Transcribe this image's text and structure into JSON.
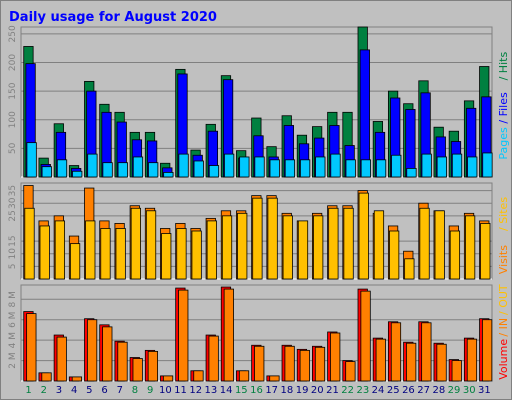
{
  "title": "Daily usage for August 2020",
  "colors": {
    "pages": "#00c8ff",
    "files": "#0000ff",
    "hits": "#008040",
    "visits": "#ff8000",
    "sites": "#ffc000",
    "kbin": "#ff8000",
    "kbout": "#ffc000",
    "volume": "#ff0000",
    "day_weekend": "#008040",
    "day_weekday": "#000080"
  },
  "chart_data": [
    {
      "type": "bar",
      "panel": "hits-files-pages",
      "categories": [
        "1",
        "2",
        "3",
        "4",
        "5",
        "6",
        "7",
        "8",
        "9",
        "10",
        "11",
        "12",
        "13",
        "14",
        "15",
        "16",
        "17",
        "18",
        "19",
        "20",
        "21",
        "22",
        "23",
        "24",
        "25",
        "26",
        "27",
        "28",
        "29",
        "30",
        "31"
      ],
      "weekend_days": [
        "1",
        "2",
        "8",
        "9",
        "15",
        "16",
        "22",
        "23",
        "29",
        "30"
      ],
      "ylim": [
        0,
        262
      ],
      "yticks": [
        "250",
        "200",
        "150",
        "100",
        "50"
      ],
      "ytick_values": [
        250,
        200,
        150,
        100,
        50
      ],
      "side_labels": [
        "Pages",
        "/",
        "Files",
        "/",
        "Hits"
      ],
      "series": [
        {
          "name": "Hits",
          "values": [
            228,
            33,
            93,
            20,
            167,
            127,
            113,
            78,
            78,
            24,
            188,
            47,
            92,
            177,
            46,
            103,
            53,
            107,
            73,
            88,
            113,
            113,
            262,
            97,
            150,
            128,
            168,
            87,
            80,
            133,
            193
          ]
        },
        {
          "name": "Files",
          "values": [
            198,
            22,
            78,
            15,
            150,
            113,
            96,
            65,
            63,
            16,
            180,
            38,
            80,
            170,
            33,
            72,
            35,
            90,
            58,
            68,
            90,
            55,
            222,
            78,
            138,
            118,
            147,
            70,
            62,
            120,
            140
          ]
        },
        {
          "name": "Pages",
          "values": [
            60,
            18,
            30,
            10,
            40,
            25,
            25,
            35,
            25,
            8,
            40,
            28,
            20,
            40,
            35,
            35,
            30,
            30,
            30,
            35,
            40,
            30,
            30,
            30,
            38,
            15,
            40,
            35,
            40,
            35,
            42
          ]
        }
      ]
    },
    {
      "type": "bar",
      "panel": "sites-visits",
      "categories": [
        "1",
        "2",
        "3",
        "4",
        "5",
        "6",
        "7",
        "8",
        "9",
        "10",
        "11",
        "12",
        "13",
        "14",
        "15",
        "16",
        "17",
        "18",
        "19",
        "20",
        "21",
        "22",
        "23",
        "24",
        "25",
        "26",
        "27",
        "28",
        "29",
        "30",
        "31"
      ],
      "ylim": [
        0,
        38
      ],
      "yticks": [
        "35",
        "30",
        "25",
        "15",
        "10",
        "5"
      ],
      "ytick_values": [
        35,
        30,
        25,
        15,
        10,
        5
      ],
      "side_labels": [
        "Visits",
        "/",
        "Sites"
      ],
      "series": [
        {
          "name": "Visits",
          "values": [
            37,
            23,
            25,
            17,
            36,
            23,
            22,
            29,
            28,
            20,
            22,
            20,
            24,
            27,
            27,
            33,
            33,
            26,
            23,
            26,
            29,
            29,
            35,
            26,
            21,
            11,
            30,
            27,
            21,
            26,
            23
          ]
        },
        {
          "name": "Sites",
          "values": [
            28,
            21,
            23,
            14,
            23,
            20,
            20,
            28,
            27,
            18,
            20,
            19,
            23,
            25,
            26,
            32,
            32,
            25,
            23,
            25,
            28,
            28,
            34,
            27,
            19,
            8,
            28,
            27,
            19,
            25,
            22
          ]
        }
      ]
    },
    {
      "type": "bar",
      "panel": "volume",
      "categories": [
        "1",
        "2",
        "3",
        "4",
        "5",
        "6",
        "7",
        "8",
        "9",
        "10",
        "11",
        "12",
        "13",
        "14",
        "15",
        "16",
        "17",
        "18",
        "19",
        "20",
        "21",
        "22",
        "23",
        "24",
        "25",
        "26",
        "27",
        "28",
        "29",
        "30",
        "31"
      ],
      "ylim": [
        0,
        9.4
      ],
      "yticks": [
        "8 M",
        "6 M",
        "4 M",
        "2 M"
      ],
      "ytick_values": [
        8,
        6,
        4,
        2
      ],
      "side_labels": [
        "Volume",
        "/",
        "IN",
        "/",
        "OUT"
      ],
      "series": [
        {
          "name": "Volume",
          "values": [
            6.8,
            0.8,
            4.5,
            0.4,
            6.1,
            5.5,
            3.9,
            2.3,
            3.0,
            0.5,
            9.1,
            1.0,
            4.5,
            9.2,
            1.0,
            3.5,
            0.5,
            3.5,
            3.1,
            3.4,
            4.8,
            2.0,
            9.0,
            4.2,
            5.8,
            3.8,
            5.8,
            3.7,
            2.1,
            4.2,
            6.1
          ]
        },
        {
          "name": "IN",
          "values": [
            6.6,
            0.8,
            4.3,
            0.4,
            6.0,
            5.3,
            3.8,
            2.2,
            2.9,
            0.5,
            8.9,
            1.0,
            4.4,
            9.0,
            1.0,
            3.4,
            0.5,
            3.4,
            3.0,
            3.3,
            4.7,
            1.9,
            8.8,
            4.1,
            5.7,
            3.7,
            5.7,
            3.6,
            2.0,
            4.1,
            6.0
          ]
        }
      ]
    }
  ]
}
